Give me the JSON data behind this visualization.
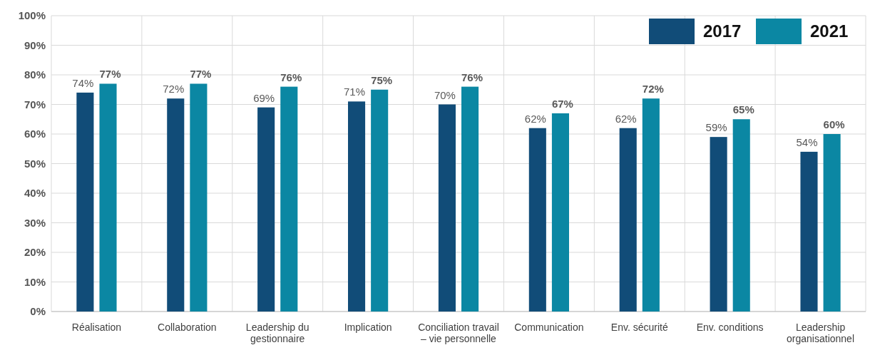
{
  "chart_data": {
    "type": "bar",
    "categories": [
      "Réalisation",
      "Collaboration",
      "Leadership du gestionnaire",
      "Implication",
      "Conciliation travail – vie personnelle",
      "Communication",
      "Env. sécurité",
      "Env. conditions",
      "Leadership organisationnel"
    ],
    "series": [
      {
        "name": "2017",
        "color": "#114c78",
        "values": [
          74,
          72,
          69,
          71,
          70,
          62,
          62,
          59,
          54
        ],
        "value_labels": [
          "74%",
          "72%",
          "69%",
          "71%",
          "70%",
          "62%",
          "62%",
          "59%",
          "54%"
        ]
      },
      {
        "name": "2021",
        "color": "#0b87a3",
        "values": [
          77,
          77,
          76,
          75,
          76,
          67,
          72,
          65,
          60
        ],
        "value_labels": [
          "77%",
          "77%",
          "76%",
          "75%",
          "76%",
          "67%",
          "72%",
          "65%",
          "60%"
        ]
      }
    ],
    "ylim": [
      0,
      100
    ],
    "yticks": [
      {
        "value": 0,
        "label": "0%"
      },
      {
        "value": 10,
        "label": "10%"
      },
      {
        "value": 20,
        "label": "20%"
      },
      {
        "value": 30,
        "label": "30%"
      },
      {
        "value": 40,
        "label": "40%"
      },
      {
        "value": 50,
        "label": "50%"
      },
      {
        "value": 60,
        "label": "60%"
      },
      {
        "value": 70,
        "label": "70%"
      },
      {
        "value": 80,
        "label": "80%"
      },
      {
        "value": 90,
        "label": "90%"
      },
      {
        "value": 100,
        "label": "100%"
      }
    ],
    "grid": true,
    "legend": "top right"
  }
}
